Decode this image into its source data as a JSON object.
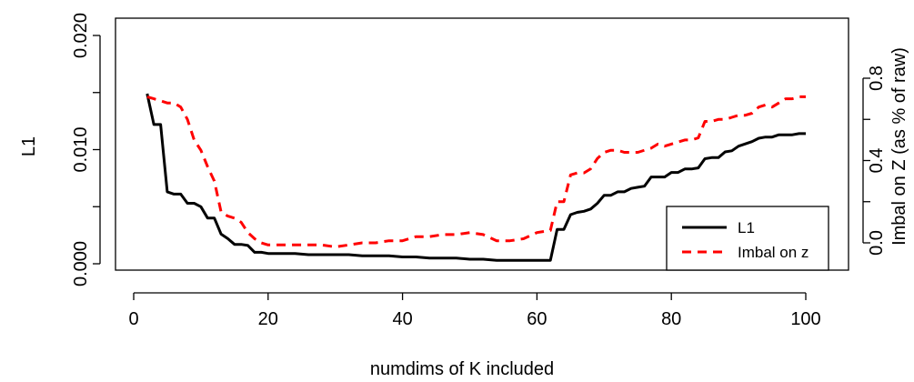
{
  "chart_data": {
    "type": "line",
    "xlabel": "numdims of K included",
    "ylabel": "L1",
    "y2label": "Imbal on Z (as % of raw)",
    "xlim": [
      0,
      100
    ],
    "ylim": [
      0,
      0.02
    ],
    "y2lim": [
      -0.15,
      0.95
    ],
    "x_ticks": [
      "0",
      "20",
      "40",
      "60",
      "80",
      "100"
    ],
    "y_ticks": [
      "0.000",
      "0.010",
      "0.020"
    ],
    "y2_ticks": [
      "0.0",
      "0.4",
      "0.8"
    ],
    "legend_position": "bottom-right",
    "colors": {
      "l1": "#000000",
      "imbal": "#ff0000"
    },
    "series": [
      {
        "name": "L1",
        "axis": "left",
        "style": "solid",
        "x": [
          2,
          3,
          4,
          5,
          6,
          7,
          8,
          9,
          10,
          11,
          12,
          13,
          14,
          15,
          16,
          17,
          18,
          19,
          20,
          22,
          24,
          26,
          28,
          30,
          32,
          34,
          36,
          38,
          40,
          42,
          44,
          46,
          48,
          50,
          52,
          54,
          56,
          58,
          60,
          62,
          63,
          64,
          65,
          66,
          67,
          68,
          69,
          70,
          71,
          72,
          73,
          74,
          75,
          76,
          77,
          78,
          79,
          80,
          81,
          82,
          83,
          84,
          85,
          86,
          87,
          88,
          89,
          90,
          91,
          92,
          93,
          94,
          95,
          96,
          97,
          98,
          99,
          100
        ],
        "values": [
          0.0149,
          0.0122,
          0.0122,
          0.0063,
          0.0061,
          0.0061,
          0.0053,
          0.0053,
          0.005,
          0.004,
          0.004,
          0.0026,
          0.0022,
          0.0017,
          0.0017,
          0.0016,
          0.001,
          0.001,
          0.0009,
          0.0009,
          0.0009,
          0.0008,
          0.0008,
          0.0008,
          0.0008,
          0.0007,
          0.0007,
          0.0007,
          0.0006,
          0.0006,
          0.0005,
          0.0005,
          0.0005,
          0.0004,
          0.0004,
          0.0003,
          0.0003,
          0.0003,
          0.0003,
          0.0003,
          0.003,
          0.003,
          0.0043,
          0.0045,
          0.0046,
          0.0048,
          0.0053,
          0.006,
          0.006,
          0.0063,
          0.0063,
          0.0066,
          0.0067,
          0.0068,
          0.0076,
          0.0076,
          0.0076,
          0.008,
          0.008,
          0.0083,
          0.0083,
          0.0084,
          0.0092,
          0.0093,
          0.0093,
          0.0098,
          0.0099,
          0.0103,
          0.0105,
          0.0107,
          0.011,
          0.0111,
          0.0111,
          0.0113,
          0.0113,
          0.0113,
          0.0114,
          0.0114
        ]
      },
      {
        "name": "Imbal on z",
        "axis": "right",
        "style": "dashed",
        "x": [
          2,
          3,
          4,
          5,
          6,
          7,
          8,
          9,
          10,
          11,
          12,
          13,
          14,
          15,
          16,
          17,
          18,
          19,
          20,
          22,
          24,
          26,
          28,
          30,
          32,
          34,
          36,
          38,
          40,
          42,
          44,
          46,
          48,
          50,
          52,
          54,
          56,
          58,
          60,
          62,
          63,
          64,
          65,
          66,
          67,
          68,
          69,
          70,
          71,
          72,
          73,
          74,
          75,
          76,
          77,
          78,
          79,
          80,
          81,
          82,
          83,
          84,
          85,
          86,
          87,
          88,
          89,
          90,
          91,
          92,
          93,
          94,
          95,
          96,
          97,
          98,
          99,
          100
        ],
        "values": [
          0.71,
          0.7,
          0.69,
          0.68,
          0.68,
          0.66,
          0.6,
          0.5,
          0.45,
          0.37,
          0.3,
          0.15,
          0.13,
          0.12,
          0.1,
          0.05,
          0.02,
          0.0,
          -0.01,
          -0.01,
          -0.01,
          -0.01,
          -0.01,
          -0.02,
          -0.01,
          0.0,
          0.0,
          0.01,
          0.01,
          0.03,
          0.03,
          0.04,
          0.04,
          0.05,
          0.04,
          0.01,
          0.01,
          0.02,
          0.05,
          0.06,
          0.2,
          0.2,
          0.33,
          0.34,
          0.34,
          0.36,
          0.41,
          0.44,
          0.45,
          0.45,
          0.44,
          0.44,
          0.44,
          0.45,
          0.46,
          0.48,
          0.47,
          0.48,
          0.49,
          0.5,
          0.5,
          0.51,
          0.59,
          0.59,
          0.6,
          0.6,
          0.61,
          0.62,
          0.62,
          0.63,
          0.66,
          0.67,
          0.66,
          0.68,
          0.7,
          0.7,
          0.71,
          0.71
        ]
      }
    ]
  }
}
